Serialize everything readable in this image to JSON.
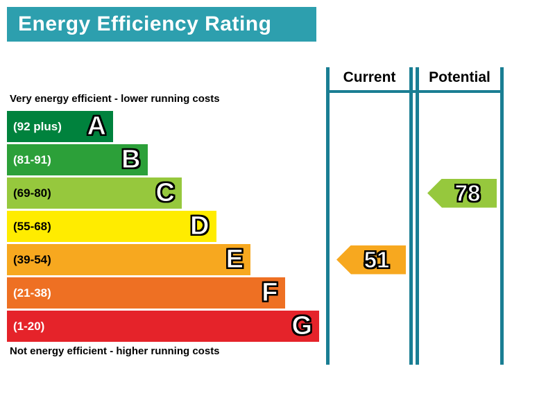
{
  "header": {
    "title": "Energy Efficiency Rating"
  },
  "notes": {
    "top": "Very energy efficient - lower running costs",
    "bottom": "Not energy efficient - higher running costs"
  },
  "columns": {
    "current": "Current",
    "potential": "Potential"
  },
  "chart_data": {
    "type": "bar",
    "subtype": "energy-efficiency-rating",
    "title": "Energy Efficiency Rating",
    "bands": [
      {
        "letter": "A",
        "range": "(92 plus)",
        "color": "#00823d",
        "text_color": "#ffffff",
        "width_pct": 34
      },
      {
        "letter": "B",
        "range": "(81-91)",
        "color": "#2ca039",
        "text_color": "#ffffff",
        "width_pct": 45
      },
      {
        "letter": "C",
        "range": "(69-80)",
        "color": "#96c83d",
        "text_color": "#000000",
        "width_pct": 56
      },
      {
        "letter": "D",
        "range": "(55-68)",
        "color": "#ffec00",
        "text_color": "#000000",
        "width_pct": 67
      },
      {
        "letter": "E",
        "range": "(39-54)",
        "color": "#f7a81f",
        "text_color": "#000000",
        "width_pct": 78
      },
      {
        "letter": "F",
        "range": "(21-38)",
        "color": "#ee7023",
        "text_color": "#ffffff",
        "width_pct": 89
      },
      {
        "letter": "G",
        "range": "(1-20)",
        "color": "#e5232a",
        "text_color": "#ffffff",
        "width_pct": 100
      }
    ],
    "current": {
      "value": 51,
      "band_letter": "E",
      "band_index": 4,
      "color": "#f7a81f"
    },
    "potential": {
      "value": 78,
      "band_letter": "C",
      "band_index": 2,
      "color": "#96c83d"
    }
  },
  "colors": {
    "banner": "#2d9fae",
    "border": "#1a7e93"
  }
}
